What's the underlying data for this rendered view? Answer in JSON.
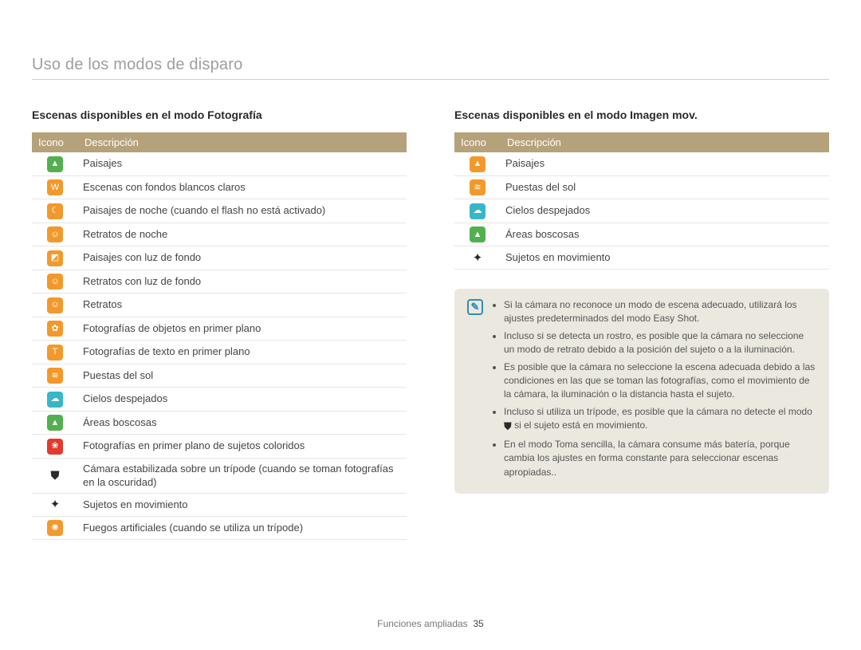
{
  "page": {
    "title": "Uso de los modos de disparo",
    "footer_label": "Funciones ampliadas",
    "page_number": "35"
  },
  "colors": {
    "header_bar": "#b5a27b",
    "note_bg": "#ebe8df",
    "note_accent": "#2f8fb5",
    "rule": "#e6e6e6"
  },
  "left": {
    "heading": "Escenas disponibles en el modo Fotografía",
    "columns": {
      "icon": "Icono",
      "desc": "Descripción"
    },
    "rows": [
      {
        "icon": "landscape-icon",
        "glyph": "▲",
        "bg": "#52b04f",
        "desc": "Paisajes"
      },
      {
        "icon": "white-icon",
        "glyph": "W",
        "bg": "#f3992b",
        "desc": "Escenas con fondos blancos claros"
      },
      {
        "icon": "night-landscape-icon",
        "glyph": "☾",
        "bg": "#f3992b",
        "desc": "Paisajes de noche (cuando el flash no está activado)"
      },
      {
        "icon": "night-portrait-icon",
        "glyph": "☺",
        "bg": "#f3992b",
        "desc": "Retratos de noche"
      },
      {
        "icon": "backlight-landscape-icon",
        "glyph": "◩",
        "bg": "#f3992b",
        "desc": "Paisajes con luz de fondo"
      },
      {
        "icon": "backlight-portrait-icon",
        "glyph": "☺",
        "bg": "#f3992b",
        "desc": "Retratos con luz de fondo"
      },
      {
        "icon": "portrait-icon",
        "glyph": "☺",
        "bg": "#f3992b",
        "desc": "Retratos"
      },
      {
        "icon": "macro-icon",
        "glyph": "✿",
        "bg": "#f3992b",
        "desc": "Fotografías de objetos en primer plano"
      },
      {
        "icon": "macro-text-icon",
        "glyph": "T",
        "bg": "#f3992b",
        "desc": "Fotografías de texto en primer plano"
      },
      {
        "icon": "sunset-icon",
        "glyph": "≋",
        "bg": "#f3992b",
        "desc": "Puestas del sol"
      },
      {
        "icon": "sky-icon",
        "glyph": "☁",
        "bg": "#38b6c9",
        "desc": "Cielos despejados"
      },
      {
        "icon": "forest-icon",
        "glyph": "▲",
        "bg": "#52b04f",
        "desc": "Áreas boscosas"
      },
      {
        "icon": "macro-color-icon",
        "glyph": "❀",
        "bg": "#e2392f",
        "desc": "Fotografías en primer plano de sujetos coloridos"
      },
      {
        "icon": "tripod-icon",
        "glyph": "⛊",
        "bg": "",
        "desc": "Cámara estabilizada sobre un trípode (cuando se toman fotografías en la oscuridad)"
      },
      {
        "icon": "motion-icon",
        "glyph": "✦",
        "bg": "",
        "desc": "Sujetos en movimiento"
      },
      {
        "icon": "fireworks-icon",
        "glyph": "✺",
        "bg": "#f3992b",
        "desc": "Fuegos artificiales (cuando se utiliza un trípode)"
      }
    ]
  },
  "right": {
    "heading": "Escenas disponibles en el modo Imagen mov.",
    "columns": {
      "icon": "Icono",
      "desc": "Descripción"
    },
    "rows": [
      {
        "icon": "landscape-icon",
        "glyph": "▲",
        "bg": "#f3992b",
        "desc": "Paisajes"
      },
      {
        "icon": "sunset-icon",
        "glyph": "≋",
        "bg": "#f3992b",
        "desc": "Puestas del sol"
      },
      {
        "icon": "sky-icon",
        "glyph": "☁",
        "bg": "#38b6c9",
        "desc": "Cielos despejados"
      },
      {
        "icon": "forest-icon",
        "glyph": "▲",
        "bg": "#52b04f",
        "desc": "Áreas boscosas"
      },
      {
        "icon": "motion-icon",
        "glyph": "✦",
        "bg": "",
        "desc": "Sujetos en movimiento"
      }
    ]
  },
  "notes": {
    "glyph": "✎",
    "tripod_inline_glyph": "⛊",
    "items": [
      "Si la cámara no reconoce un modo de escena adecuado, utilizará los ajustes predeterminados del modo Easy Shot.",
      "Incluso si se detecta un rostro, es posible que la cámara no seleccione un modo de retrato debido a la posición del sujeto o a la iluminación.",
      "Es posible que la cámara no seleccione la escena adecuada debido a las condiciones en las que se toman las fotografías, como el movimiento de la cámara, la iluminación o la distancia hasta el sujeto.",
      "Incluso si utiliza un trípode, es posible que la cámara no detecte el modo {TRIPOD} si el sujeto está en movimiento.",
      "En el modo Toma sencilla, la cámara consume más batería, porque cambia los ajustes en forma constante para seleccionar escenas apropiadas.."
    ]
  }
}
